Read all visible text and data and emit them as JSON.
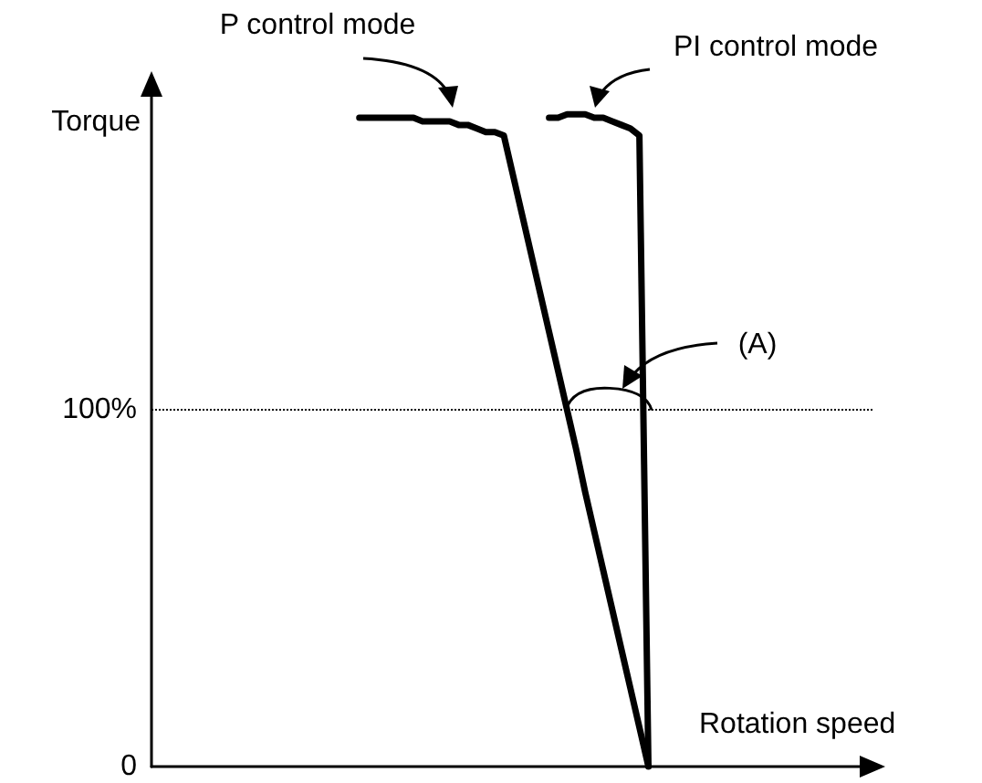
{
  "chart_data": {
    "type": "line",
    "xlabel": "Rotation speed",
    "ylabel": "Torque",
    "categories": [
      null,
      null,
      null,
      null,
      null,
      null,
      null,
      null,
      null,
      null,
      null,
      null,
      null,
      null,
      null,
      null,
      null,
      null,
      null,
      null,
      null,
      null,
      null,
      null,
      null,
      null,
      null,
      null,
      null,
      null,
      null,
      null,
      null,
      null,
      null,
      null,
      null,
      null,
      null,
      null,
      null,
      null,
      null,
      null,
      null,
      null,
      null,
      null,
      null,
      null,
      null,
      null,
      null,
      null,
      null,
      null,
      null,
      null,
      null,
      null,
      null,
      null,
      null,
      null,
      null,
      null,
      null,
      null,
      null,
      null,
      null,
      null,
      null,
      null,
      null,
      null,
      null,
      null,
      null,
      null,
      null
    ],
    "ylim": [
      0,
      192
    ],
    "yticks": [
      0,
      {
        "value": 100,
        "label": "100%"
      }
    ],
    "grid": false,
    "legend": false,
    "marker": "none",
    "line_style": "solid",
    "series": [
      {
        "name": "P control mode",
        "color": "#000000",
        "values": [
          null,
          null,
          null,
          null,
          null,
          null,
          null,
          null,
          null,
          null,
          null,
          null,
          null,
          null,
          null,
          null,
          null,
          null,
          null,
          null,
          null,
          null,
          null,
          182,
          182,
          182,
          182,
          182,
          182,
          182,
          181,
          181,
          181,
          181,
          180,
          180,
          179,
          178,
          178,
          177,
          166,
          155,
          144,
          133,
          122,
          111,
          100,
          89,
          77,
          66,
          55,
          44,
          33,
          22,
          11,
          0,
          null,
          null,
          null,
          null,
          null,
          null,
          null,
          null,
          null,
          null,
          null,
          null,
          null,
          null,
          null,
          null,
          null,
          null,
          null,
          null,
          null,
          null,
          null,
          null,
          null
        ]
      },
      {
        "name": "PI control mode",
        "color": "#000000",
        "values": [
          null,
          null,
          null,
          null,
          null,
          null,
          null,
          null,
          null,
          null,
          null,
          null,
          null,
          null,
          null,
          null,
          null,
          null,
          null,
          null,
          null,
          null,
          null,
          null,
          null,
          null,
          null,
          null,
          null,
          null,
          null,
          null,
          null,
          null,
          null,
          null,
          null,
          null,
          null,
          null,
          null,
          null,
          null,
          null,
          182,
          182,
          183,
          183,
          183,
          182,
          182,
          181,
          180,
          179,
          177,
          0,
          null,
          null,
          null,
          null,
          null,
          null,
          null,
          null,
          null,
          null,
          null,
          null,
          null,
          null,
          null,
          null,
          null,
          null,
          null,
          null,
          null,
          null,
          null,
          null,
          null
        ]
      }
    ],
    "ref_lines": [
      {
        "axis": "y",
        "value": 100,
        "line_style": "dotted",
        "color": "#000000"
      }
    ],
    "annotations": [
      "(A)"
    ]
  }
}
